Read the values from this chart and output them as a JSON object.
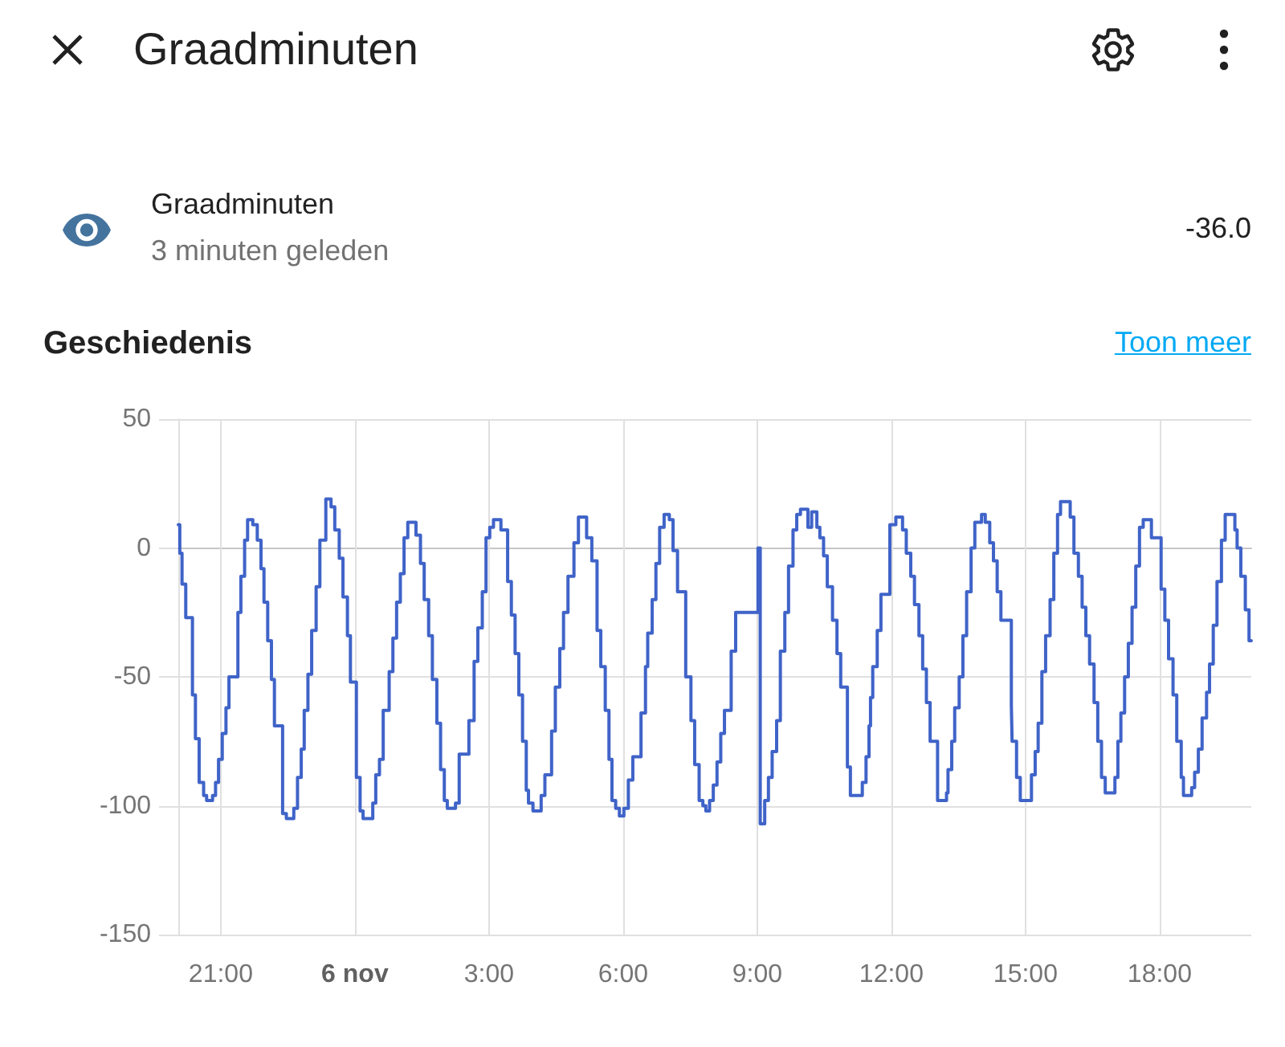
{
  "chart_data": {
    "type": "step",
    "title": "Graadminuten",
    "subtitle": "Geschiedenis",
    "annotations": [
      "Graadminuten",
      "3 minuten geleden",
      "-36.0",
      "Toon meer"
    ],
    "x": [
      "--11-05T20:03",
      "--11-05T20:05",
      "--11-05T20:08",
      "--11-05T20:13",
      "--11-05T20:22",
      "--11-05T20:26",
      "--11-05T20:31",
      "--11-05T20:37",
      "--11-05T20:41",
      "--11-05T20:49",
      "--11-05T20:53",
      "--11-05T20:57",
      "--11-05T21:02",
      "--11-05T21:07",
      "--11-05T21:11",
      "--11-05T21:23",
      "--11-05T21:27",
      "--11-05T21:32",
      "--11-05T21:36",
      "--11-05T21:43",
      "--11-05T21:49",
      "--11-05T21:54",
      "--11-05T21:58",
      "--11-05T22:03",
      "--11-05T22:08",
      "--11-05T22:12",
      "--11-05T22:23",
      "--11-05T22:28",
      "--11-05T22:38",
      "--11-05T22:43",
      "--11-05T22:48",
      "--11-05T22:52",
      "--11-05T22:57",
      "--11-05T23:02",
      "--11-05T23:08",
      "--11-05T23:13",
      "--11-05T23:21",
      "--11-05T23:28",
      "--11-05T23:33",
      "--11-05T23:39",
      "--11-05T23:44",
      "--11-05T23:50",
      "--11-05T23:54",
      "--11-06T00:02",
      "--11-06T00:07",
      "--11-06T00:11",
      "--11-06T00:24",
      "--11-06T00:28",
      "--11-06T00:33",
      "--11-06T00:38",
      "--11-06T00:46",
      "--11-06T00:51",
      "--11-06T00:56",
      "--11-06T01:01",
      "--11-06T01:06",
      "--11-06T01:11",
      "--11-06T01:22",
      "--11-06T01:28",
      "--11-06T01:33",
      "--11-06T01:39",
      "--11-06T01:44",
      "--11-06T01:50",
      "--11-06T01:55",
      "--11-06T02:00",
      "--11-06T02:04",
      "--11-06T02:15",
      "--11-06T02:20",
      "--11-06T02:33",
      "--11-06T02:40",
      "--11-06T02:45",
      "--11-06T02:51",
      "--11-06T02:56",
      "--11-06T03:01",
      "--11-06T03:06",
      "--11-06T03:16",
      "--11-06T03:25",
      "--11-06T03:30",
      "--11-06T03:35",
      "--11-06T03:40",
      "--11-06T03:45",
      "--11-06T03:50",
      "--11-06T03:53",
      "--11-06T03:59",
      "--11-06T04:10",
      "--11-06T04:15",
      "--11-06T04:24",
      "--11-06T04:29",
      "--11-06T04:35",
      "--11-06T04:40",
      "--11-06T04:46",
      "--11-06T04:54",
      "--11-06T05:00",
      "--11-06T05:11",
      "--11-06T05:18",
      "--11-06T05:25",
      "--11-06T05:30",
      "--11-06T05:36",
      "--11-06T05:41",
      "--11-06T05:45",
      "--11-06T05:50",
      "--11-06T05:55",
      "--11-06T06:01",
      "--11-06T06:07",
      "--11-06T06:13",
      "--11-06T06:24",
      "--11-06T06:30",
      "--11-06T06:33",
      "--11-06T06:39",
      "--11-06T06:44",
      "--11-06T06:49",
      "--11-06T06:55",
      "--11-06T07:02",
      "--11-06T07:07",
      "--11-06T07:13",
      "--11-06T07:24",
      "--11-06T07:31",
      "--11-06T07:36",
      "--11-06T07:42",
      "--11-06T07:47",
      "--11-06T07:51",
      "--11-06T07:56",
      "--11-06T08:01",
      "--11-06T08:06",
      "--11-06T08:11",
      "--11-06T08:16",
      "--11-06T08:25",
      "--11-06T08:31",
      "--11-06T09:01",
      "--11-06T09:04",
      "--11-06T09:10",
      "--11-06T09:15",
      "--11-06T09:20",
      "--11-06T09:26",
      "--11-06T09:31",
      "--11-06T09:37",
      "--11-06T09:42",
      "--11-06T09:48",
      "--11-06T09:53",
      "--11-06T09:58",
      "--11-06T10:08",
      "--11-06T10:13",
      "--11-06T10:20",
      "--11-06T10:24",
      "--11-06T10:29",
      "--11-06T10:34",
      "--11-06T10:41",
      "--11-06T10:47",
      "--11-06T10:52",
      "--11-06T11:01",
      "--11-06T11:05",
      "--11-06T11:21",
      "--11-06T11:26",
      "--11-06T11:30",
      "--11-06T11:32",
      "--11-06T11:35",
      "--11-06T11:41",
      "--11-06T11:46",
      "--11-06T11:58",
      "--11-06T12:06",
      "--11-06T12:15",
      "--11-06T12:20",
      "--11-06T12:26",
      "--11-06T12:31",
      "--11-06T12:37",
      "--11-06T12:42",
      "--11-06T12:47",
      "--11-06T12:52",
      "--11-06T13:02",
      "--11-06T13:14",
      "--11-06T13:16",
      "--11-06T13:21",
      "--11-06T13:25",
      "--11-06T13:31",
      "--11-06T13:36",
      "--11-06T13:41",
      "--11-06T13:47",
      "--11-06T13:52",
      "--11-06T14:01",
      "--11-06T14:06",
      "--11-06T14:12",
      "--11-06T14:17",
      "--11-06T14:22",
      "--11-06T14:27",
      "--11-06T14:41",
      "--11-06T14:42",
      "--11-06T14:48",
      "--11-06T14:53",
      "--11-06T15:08",
      "--11-06T15:13",
      "--11-06T15:17",
      "--11-06T15:22",
      "--11-06T15:27",
      "--11-06T15:33",
      "--11-06T15:38",
      "--11-06T15:43",
      "--11-06T15:47",
      "--11-06T16:00",
      "--11-06T16:05",
      "--11-06T16:11",
      "--11-06T16:16",
      "--11-06T16:21",
      "--11-06T16:26",
      "--11-06T16:32",
      "--11-06T16:37",
      "--11-06T16:42",
      "--11-06T16:47",
      "--11-06T17:00",
      "--11-06T17:04",
      "--11-06T17:08",
      "--11-06T17:13",
      "--11-06T17:18",
      "--11-06T17:23",
      "--11-06T17:28",
      "--11-06T17:33",
      "--11-06T17:38",
      "--11-06T17:49",
      "--11-06T18:02",
      "--11-06T18:07",
      "--11-06T18:12",
      "--11-06T18:18",
      "--11-06T18:23",
      "--11-06T18:29",
      "--11-06T18:32",
      "--11-06T18:43",
      "--11-06T18:47",
      "--11-06T18:52",
      "--11-06T18:57",
      "--11-06T19:03",
      "--11-06T19:07",
      "--11-06T19:12",
      "--11-06T19:17",
      "--11-06T19:23",
      "--11-06T19:28",
      "--11-06T19:41",
      "--11-06T19:44",
      "--11-06T19:49",
      "--11-06T19:55",
      "--11-06T20:00",
      "--11-06T20:03"
    ],
    "values": [
      9,
      -2,
      -14,
      -27,
      -57,
      -74,
      -91,
      -96,
      -98,
      -96,
      -91,
      -82,
      -72,
      -62,
      -50,
      -25,
      -11,
      3,
      11,
      9,
      3,
      -8,
      -21,
      -36,
      -51,
      -69,
      -103,
      -105,
      -101,
      -89,
      -78,
      -63,
      -49,
      -32,
      -15,
      3,
      19,
      16,
      7,
      -4,
      -19,
      -34,
      -52,
      -89,
      -102,
      -105,
      -99,
      -88,
      -82,
      -63,
      -48,
      -35,
      -21,
      -10,
      4,
      10,
      5,
      -6,
      -20,
      -34,
      -51,
      -68,
      -86,
      -98,
      -101,
      -99,
      -80,
      -67,
      -44,
      -31,
      -17,
      4,
      8,
      11,
      7,
      -13,
      -26,
      -41,
      -57,
      -75,
      -94,
      -99,
      -102,
      -96,
      -88,
      -71,
      -54,
      -39,
      -25,
      -11,
      2,
      12,
      4,
      -5,
      -32,
      -46,
      -63,
      -82,
      -98,
      -101,
      -104,
      -101,
      -90,
      -81,
      -64,
      -46,
      -33,
      -20,
      -6,
      8,
      13,
      11,
      -1,
      -17,
      -50,
      -67,
      -84,
      -98,
      -100,
      -102,
      -98,
      -92,
      -83,
      -72,
      -63,
      -40,
      -25,
      0,
      -107,
      -98,
      -89,
      -79,
      -67,
      -40,
      -25,
      -7,
      7,
      13,
      15,
      8,
      14,
      8,
      4,
      -3,
      -15,
      -28,
      -41,
      -54,
      -85,
      -96,
      -91,
      -81,
      -69,
      -58,
      -46,
      -32,
      -18,
      9,
      12,
      7,
      -2,
      -11,
      -22,
      -34,
      -47,
      -60,
      -75,
      -98,
      -95,
      -86,
      -75,
      -62,
      -50,
      -34,
      -17,
      0,
      10,
      13,
      10,
      2,
      -5,
      -17,
      -28,
      -61,
      -75,
      -89,
      -98,
      -88,
      -79,
      -68,
      -48,
      -34,
      -20,
      -2,
      13,
      18,
      12,
      -2,
      -11,
      -23,
      -34,
      -45,
      -60,
      -75,
      -89,
      -95,
      -89,
      -75,
      -64,
      -50,
      -37,
      -23,
      -7,
      8,
      11,
      4,
      -16,
      -28,
      -43,
      -57,
      -75,
      -89,
      -96,
      -93,
      -87,
      -78,
      -66,
      -56,
      -45,
      -30,
      -13,
      3,
      13,
      7,
      0,
      -11,
      -24,
      -36,
      -36
    ],
    "color": "#3f63c8",
    "xlim": [
      "--11-05T20:03",
      "--11-06T20:03"
    ],
    "xticks": [
      {
        "value": "--11-05T21:00",
        "label": "21:00"
      },
      {
        "value": "--11-06T00:00",
        "label": "6 nov"
      },
      {
        "value": "--11-06T03:00",
        "label": "3:00"
      },
      {
        "value": "--11-06T06:00",
        "label": "6:00"
      },
      {
        "value": "--11-06T09:00",
        "label": "9:00"
      },
      {
        "value": "--11-06T12:00",
        "label": "12:00"
      },
      {
        "value": "--11-06T15:00",
        "label": "15:00"
      },
      {
        "value": "--11-06T18:00",
        "label": "18:00"
      }
    ],
    "ylim": [
      -150,
      50
    ],
    "yticks": [
      50,
      0,
      -50,
      -100,
      -150
    ],
    "grid": true,
    "marker": "none",
    "line_style": "solid"
  }
}
